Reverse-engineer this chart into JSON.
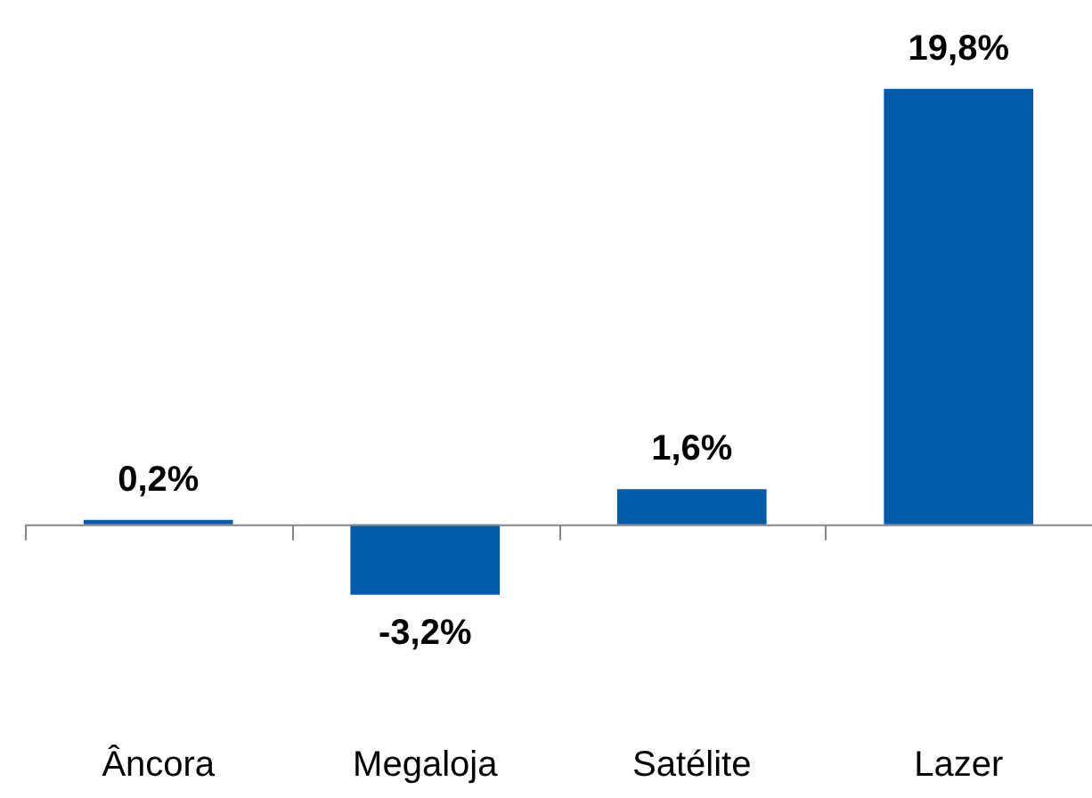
{
  "chart_data": {
    "type": "bar",
    "categories": [
      "Âncora",
      "Megaloja",
      "Satélite",
      "Lazer"
    ],
    "values": [
      0.2,
      -3.2,
      1.6,
      19.8
    ],
    "color": "#005bab",
    "value_labels": [
      "0,2%",
      "-3,2%",
      "1,6%",
      "19,8%"
    ],
    "grid": false,
    "legend": false
  }
}
